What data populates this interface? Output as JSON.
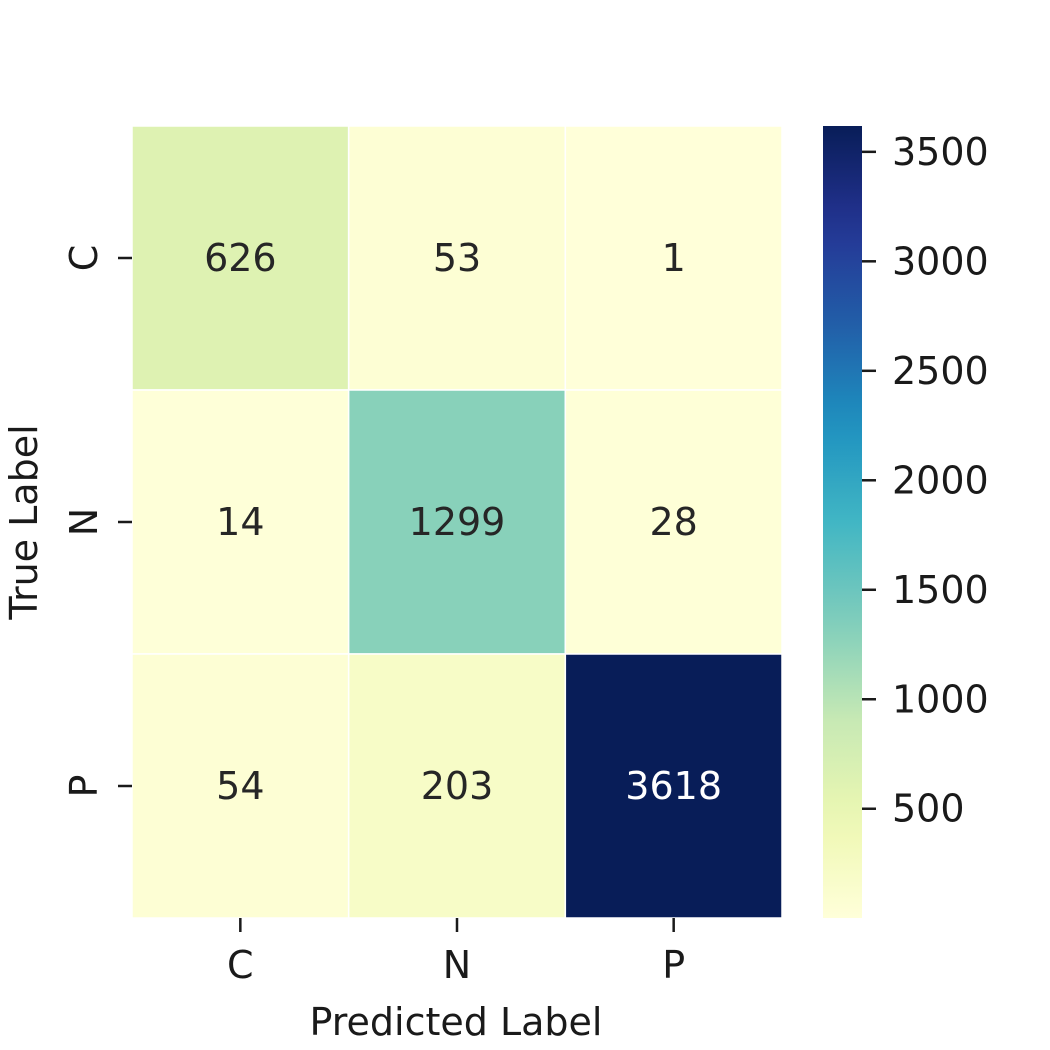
{
  "chart_data": {
    "type": "heatmap",
    "title": "",
    "xlabel": "Predicted Label",
    "ylabel": "True Label",
    "x_categories": [
      "C",
      "N",
      "P"
    ],
    "y_categories": [
      "C",
      "N",
      "P"
    ],
    "matrix": [
      [
        626,
        53,
        1
      ],
      [
        14,
        1299,
        28
      ],
      [
        54,
        203,
        3618
      ]
    ],
    "colormap": "YlGnBu",
    "colorbar": {
      "range": [
        1,
        3618
      ],
      "ticks": [
        500,
        1000,
        1500,
        2000,
        2500,
        3000,
        3500
      ],
      "tick_labels": [
        "500",
        "1000",
        "1500",
        "2000",
        "2500",
        "3000",
        "3500"
      ]
    },
    "legend": "colorbar-right",
    "grid": false
  }
}
